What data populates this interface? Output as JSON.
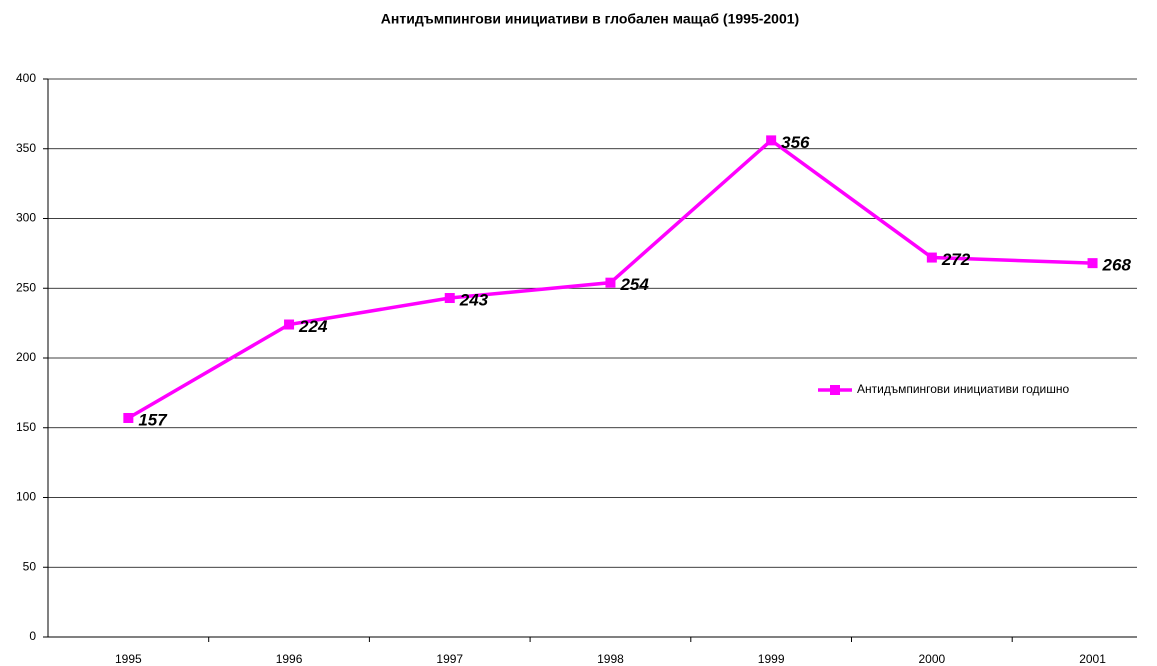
{
  "chart_data": {
    "type": "line",
    "title": "Антидъмпингови инициативи в глобален мащаб (1995-2001)",
    "categories": [
      "1995",
      "1996",
      "1997",
      "1998",
      "1999",
      "2000",
      "2001"
    ],
    "series": [
      {
        "name": "Антидъмпингови инициативи годишно",
        "color": "#ff00ff",
        "values": [
          157,
          224,
          243,
          254,
          356,
          272,
          268
        ]
      }
    ],
    "ylim": [
      0,
      400
    ],
    "yticks": [
      0,
      50,
      100,
      150,
      200,
      250,
      300,
      350,
      400
    ],
    "grid": true,
    "legend": "right",
    "data_labels": true
  }
}
